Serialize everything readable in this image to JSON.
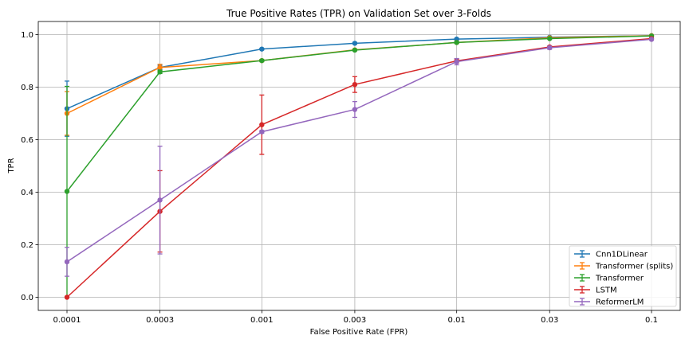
{
  "chart_data": {
    "type": "line",
    "title": "True Positive Rates (TPR) on Validation Set over 3-Folds",
    "xlabel": "False Positive Rate (FPR)",
    "ylabel": "TPR",
    "x_scale": "log",
    "categories": [
      "0.0001",
      "0.0003",
      "0.001",
      "0.003",
      "0.01",
      "0.03",
      "0.1"
    ],
    "x": [
      0.0001,
      0.0003,
      0.001,
      0.003,
      0.01,
      0.03,
      0.1
    ],
    "ylim": [
      -0.05,
      1.05
    ],
    "yticks": [
      "0.0",
      "0.2",
      "0.4",
      "0.6",
      "0.8",
      "1.0"
    ],
    "ytick_values": [
      0.0,
      0.2,
      0.4,
      0.6,
      0.8,
      1.0
    ],
    "grid": true,
    "legend_position": "lower-right",
    "series": [
      {
        "name": "Cnn1DLinear",
        "color": "#1f77b4",
        "values": [
          0.718,
          0.875,
          0.945,
          0.967,
          0.983,
          0.99,
          0.996
        ],
        "errors": [
          0.105,
          0.008,
          0.003,
          0.003,
          0.003,
          0.002,
          0.001
        ]
      },
      {
        "name": "Transformer (splits)",
        "color": "#ff7f0e",
        "values": [
          0.7,
          0.875,
          0.901,
          0.942,
          0.97,
          0.988,
          0.996
        ],
        "errors": [
          0.083,
          0.012,
          0.004,
          0.003,
          0.003,
          0.002,
          0.001
        ]
      },
      {
        "name": "Transformer",
        "color": "#2ca02c",
        "values": [
          0.403,
          0.858,
          0.901,
          0.941,
          0.97,
          0.985,
          0.995
        ],
        "errors": [
          0.4,
          0.006,
          0.004,
          0.003,
          0.003,
          0.002,
          0.001
        ]
      },
      {
        "name": "LSTM",
        "color": "#d62728",
        "values": [
          0.0,
          0.327,
          0.657,
          0.81,
          0.9,
          0.953,
          0.985
        ],
        "errors": [
          0.0,
          0.155,
          0.113,
          0.03,
          0.008,
          0.004,
          0.003
        ]
      },
      {
        "name": "ReformerLM",
        "color": "#9467bd",
        "values": [
          0.135,
          0.37,
          0.63,
          0.715,
          0.897,
          0.95,
          0.982
        ],
        "errors": [
          0.055,
          0.205,
          0.005,
          0.03,
          0.012,
          0.006,
          0.003
        ]
      }
    ]
  }
}
